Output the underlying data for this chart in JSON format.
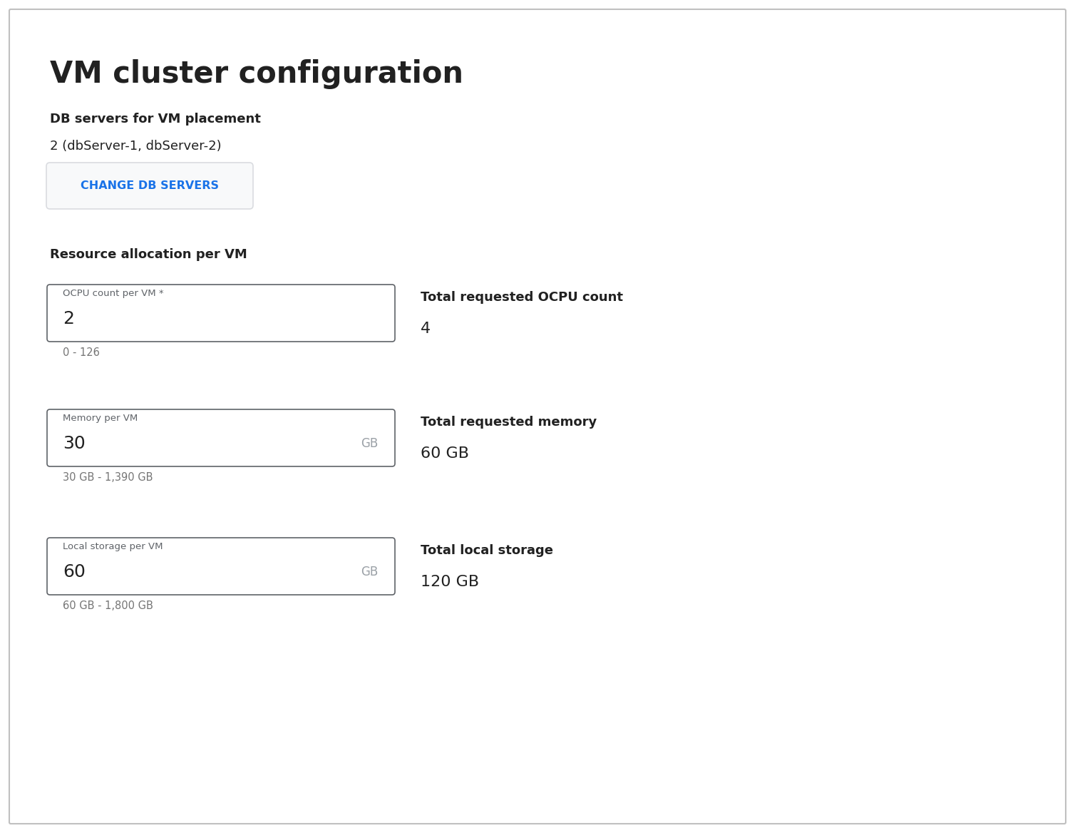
{
  "title": "VM cluster configuration",
  "db_servers_label": "DB servers for VM placement",
  "db_servers_value": "2 (dbServer-1, dbServer-2)",
  "button_text": "CHANGE DB SERVERS",
  "resource_allocation_label": "Resource allocation per VM",
  "fields": [
    {
      "label": "OCPU count per VM *",
      "value": "2",
      "unit": "",
      "hint": "0 - 126",
      "total_label": "Total requested OCPU count",
      "total_value": "4"
    },
    {
      "label": "Memory per VM",
      "value": "30",
      "unit": "GB",
      "hint": "30 GB - 1,390 GB",
      "total_label": "Total requested memory",
      "total_value": "60 GB"
    },
    {
      "label": "Local storage per VM",
      "value": "60",
      "unit": "GB",
      "hint": "60 GB - 1,800 GB",
      "total_label": "Total local storage",
      "total_value": "120 GB"
    }
  ],
  "bg_color": "#ffffff",
  "border_color": "#cccccc",
  "text_color": "#212121",
  "hint_color": "#757575",
  "button_text_color": "#1a73e8",
  "button_border_color": "#dadce0",
  "button_bg_color": "#f8f9fa",
  "input_border_color": "#5f6368",
  "input_border_focused": "#1a73e8",
  "unit_color": "#9aa0a6",
  "label_color": "#5f6368",
  "outer_border_color": "#c0c0c0"
}
